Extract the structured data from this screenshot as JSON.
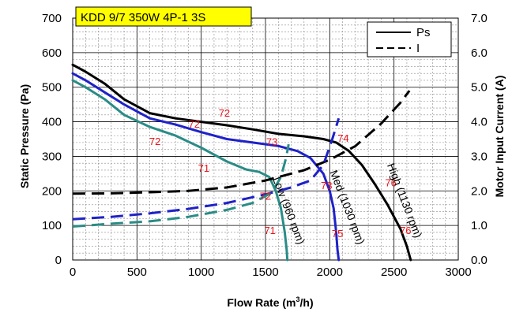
{
  "chart_data": {
    "type": "line",
    "title": "KDD 9/7 350W 4P-1 3S",
    "xlabel": "Flow Rate (m3/h)",
    "ylabel": "Static Pressure (Pa)",
    "y2label": "Motor Input Current (A)",
    "xlim": [
      0,
      3000
    ],
    "ylim": [
      0,
      700
    ],
    "y2lim": [
      0,
      7
    ],
    "x_ticks": [
      "0",
      "500",
      "1000",
      "1500",
      "2000",
      "2500",
      "3000"
    ],
    "y_ticks": [
      "0",
      "100",
      "200",
      "300",
      "400",
      "500",
      "600",
      "700"
    ],
    "y2_ticks": [
      "0.0",
      "1.0",
      "2.0",
      "3.0",
      "4.0",
      "5.0",
      "6.0",
      "7.0"
    ],
    "grid": true,
    "legend": {
      "position": "top-right",
      "entries": [
        {
          "label": "Ps",
          "style": "solid"
        },
        {
          "label": "I",
          "style": "dashed"
        }
      ]
    },
    "colors": {
      "high": "#000000",
      "med": "#1f22c8",
      "low": "#2a8c86",
      "annotation": "#e8141b"
    },
    "series": [
      {
        "key": "high",
        "label": "High (1130 rpm)",
        "quantity": "Ps",
        "axis": "left",
        "points": [
          [
            0,
            565
          ],
          [
            100,
            545
          ],
          [
            250,
            510
          ],
          [
            400,
            465
          ],
          [
            600,
            425
          ],
          [
            800,
            410
          ],
          [
            1000,
            400
          ],
          [
            1200,
            390
          ],
          [
            1400,
            378
          ],
          [
            1600,
            365
          ],
          [
            1800,
            358
          ],
          [
            1950,
            350
          ],
          [
            2050,
            340
          ],
          [
            2150,
            315
          ],
          [
            2250,
            275
          ],
          [
            2350,
            220
          ],
          [
            2450,
            160
          ],
          [
            2550,
            90
          ],
          [
            2600,
            40
          ],
          [
            2630,
            0
          ]
        ]
      },
      {
        "key": "med",
        "label": "Med (1030 rpm)",
        "quantity": "Ps",
        "axis": "left",
        "points": [
          [
            0,
            540
          ],
          [
            100,
            520
          ],
          [
            250,
            485
          ],
          [
            400,
            450
          ],
          [
            600,
            410
          ],
          [
            800,
            392
          ],
          [
            1000,
            370
          ],
          [
            1200,
            350
          ],
          [
            1400,
            340
          ],
          [
            1600,
            330
          ],
          [
            1750,
            315
          ],
          [
            1850,
            295
          ],
          [
            1950,
            250
          ],
          [
            2000,
            200
          ],
          [
            2030,
            150
          ],
          [
            2050,
            80
          ],
          [
            2060,
            30
          ],
          [
            2070,
            0
          ]
        ]
      },
      {
        "key": "low",
        "label": "Low (960 rpm)",
        "quantity": "Ps",
        "axis": "left",
        "points": [
          [
            0,
            520
          ],
          [
            100,
            500
          ],
          [
            250,
            465
          ],
          [
            400,
            420
          ],
          [
            600,
            385
          ],
          [
            800,
            360
          ],
          [
            1000,
            325
          ],
          [
            1200,
            285
          ],
          [
            1350,
            262
          ],
          [
            1450,
            255
          ],
          [
            1530,
            240
          ],
          [
            1580,
            200
          ],
          [
            1620,
            150
          ],
          [
            1650,
            80
          ],
          [
            1665,
            30
          ],
          [
            1670,
            0
          ]
        ]
      },
      {
        "key": "high",
        "label": "",
        "quantity": "I",
        "axis": "right",
        "points": [
          [
            0,
            1.92
          ],
          [
            300,
            1.93
          ],
          [
            600,
            1.96
          ],
          [
            900,
            2.0
          ],
          [
            1200,
            2.1
          ],
          [
            1500,
            2.3
          ],
          [
            1800,
            2.6
          ],
          [
            2000,
            2.9
          ],
          [
            2200,
            3.3
          ],
          [
            2400,
            3.95
          ],
          [
            2550,
            4.55
          ],
          [
            2620,
            4.9
          ]
        ]
      },
      {
        "key": "med",
        "label": "",
        "quantity": "I",
        "axis": "right",
        "points": [
          [
            0,
            1.18
          ],
          [
            300,
            1.25
          ],
          [
            600,
            1.35
          ],
          [
            900,
            1.48
          ],
          [
            1200,
            1.65
          ],
          [
            1500,
            1.9
          ],
          [
            1700,
            2.1
          ],
          [
            1850,
            2.3
          ],
          [
            1950,
            2.75
          ],
          [
            2020,
            3.5
          ],
          [
            2070,
            4.1
          ]
        ]
      },
      {
        "key": "low",
        "label": "",
        "quantity": "I",
        "axis": "right",
        "points": [
          [
            0,
            0.97
          ],
          [
            300,
            1.05
          ],
          [
            600,
            1.12
          ],
          [
            900,
            1.25
          ],
          [
            1200,
            1.45
          ],
          [
            1400,
            1.65
          ],
          [
            1550,
            1.95
          ],
          [
            1620,
            2.4
          ],
          [
            1660,
            2.95
          ],
          [
            1680,
            3.35
          ]
        ]
      }
    ],
    "annotations": [
      {
        "text": "72",
        "x": 1180,
        "y": 415,
        "color": "red"
      },
      {
        "text": "72",
        "x": 945,
        "y": 383,
        "color": "red"
      },
      {
        "text": "72",
        "x": 640,
        "y": 333,
        "color": "red"
      },
      {
        "text": "71",
        "x": 1020,
        "y": 255,
        "color": "red"
      },
      {
        "text": "73",
        "x": 1550,
        "y": 332,
        "color": "red"
      },
      {
        "text": "74",
        "x": 2105,
        "y": 342,
        "color": "red"
      },
      {
        "text": "73",
        "x": 1975,
        "y": 205,
        "color": "red"
      },
      {
        "text": "72",
        "x": 1500,
        "y": 175,
        "color": "red"
      },
      {
        "text": "76",
        "x": 2475,
        "y": 213,
        "color": "red"
      },
      {
        "text": "76",
        "x": 2590,
        "y": 75,
        "color": "red"
      },
      {
        "text": "75",
        "x": 2060,
        "y": 66,
        "color": "red"
      },
      {
        "text": "71",
        "x": 1535,
        "y": 75,
        "color": "red"
      }
    ],
    "curve_labels": [
      {
        "text": "High (1130 rpm)",
        "x": 2445,
        "y": 275
      },
      {
        "text": "Med (1030 rpm)",
        "x": 2000,
        "y": 255
      },
      {
        "text": "Low (960 rpm)",
        "x": 1555,
        "y": 235
      }
    ]
  }
}
